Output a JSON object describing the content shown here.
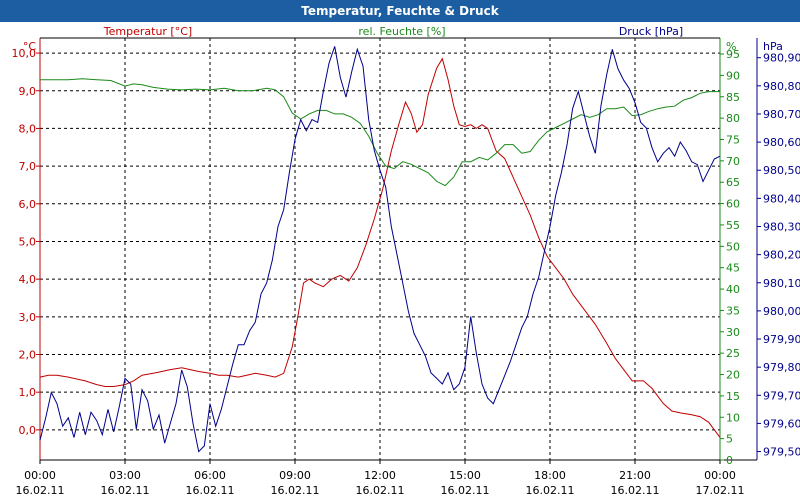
{
  "window": {
    "title": "Temperatur, Feuchte & Druck"
  },
  "colors": {
    "title_bar": "#1c5ea1",
    "temperature": "#c00000",
    "humidity": "#1a8a1a",
    "pressure": "#00008c",
    "grid": "#000000"
  },
  "chart_data": {
    "type": "line",
    "title": "Temperatur, Feuchte & Druck",
    "x_range": [
      0,
      24
    ],
    "x_ticks": [
      {
        "t": 0,
        "time": "00:00",
        "date": "16.02.11"
      },
      {
        "t": 3,
        "time": "03:00",
        "date": "16.02.11"
      },
      {
        "t": 6,
        "time": "06:00",
        "date": "16.02.11"
      },
      {
        "t": 9,
        "time": "09:00",
        "date": "16.02.11"
      },
      {
        "t": 12,
        "time": "12:00",
        "date": "16.02.11"
      },
      {
        "t": 15,
        "time": "15:00",
        "date": "16.02.11"
      },
      {
        "t": 18,
        "time": "18:00",
        "date": "16.02.11"
      },
      {
        "t": 21,
        "time": "21:00",
        "date": "16.02.11"
      },
      {
        "t": 24,
        "time": "00:00",
        "date": "17.02.11"
      }
    ],
    "axes": {
      "temperature": {
        "unit": "°C",
        "label": "Temperatur [°C]",
        "range": [
          -0.8,
          10.4
        ],
        "ticks": [
          0,
          1,
          2,
          3,
          4,
          5,
          6,
          7,
          8,
          9,
          10
        ],
        "tick_labels": [
          "0,0",
          "1,0",
          "2,0",
          "3,0",
          "4,0",
          "5,0",
          "6,0",
          "7,0",
          "8,0",
          "9,0",
          "10,0"
        ]
      },
      "humidity": {
        "unit": "%",
        "label": "rel. Feuchte [%]",
        "range": [
          0,
          98.75
        ],
        "ticks": [
          0,
          5,
          10,
          15,
          20,
          25,
          30,
          35,
          40,
          45,
          50,
          55,
          60,
          65,
          70,
          75,
          80,
          85,
          90,
          95
        ],
        "tick_labels": [
          "0",
          "5",
          "10",
          "15",
          "20",
          "25",
          "30",
          "35",
          "40",
          "45",
          "50",
          "55",
          "60",
          "65",
          "70",
          "75",
          "80",
          "85",
          "90",
          "95"
        ]
      },
      "pressure": {
        "unit": "hPa",
        "label": "Druck [hPa]",
        "range": [
          979.47,
          980.97
        ],
        "ticks": [
          979.5,
          979.6,
          979.7,
          979.8,
          979.9,
          980.0,
          980.1,
          980.2,
          980.3,
          980.4,
          980.5,
          980.6,
          980.7,
          980.8,
          980.9
        ],
        "tick_labels": [
          "979,50",
          "979,60",
          "979,70",
          "979,80",
          "979,90",
          "980,00",
          "980,10",
          "980,20",
          "980,30",
          "980,40",
          "980,50",
          "980,60",
          "980,70",
          "980,80",
          "980,90"
        ]
      }
    },
    "series": [
      {
        "name": "Temperatur [°C]",
        "axis": "temperature",
        "points": [
          [
            0,
            1.4
          ],
          [
            0.3,
            1.45
          ],
          [
            0.6,
            1.45
          ],
          [
            1,
            1.4
          ],
          [
            1.3,
            1.35
          ],
          [
            1.6,
            1.3
          ],
          [
            2,
            1.2
          ],
          [
            2.3,
            1.15
          ],
          [
            2.6,
            1.15
          ],
          [
            3,
            1.2
          ],
          [
            3.3,
            1.3
          ],
          [
            3.6,
            1.45
          ],
          [
            4,
            1.5
          ],
          [
            4.3,
            1.55
          ],
          [
            4.6,
            1.6
          ],
          [
            5,
            1.65
          ],
          [
            5.3,
            1.6
          ],
          [
            5.6,
            1.55
          ],
          [
            6,
            1.5
          ],
          [
            6.3,
            1.45
          ],
          [
            6.6,
            1.45
          ],
          [
            7,
            1.4
          ],
          [
            7.3,
            1.45
          ],
          [
            7.6,
            1.5
          ],
          [
            8,
            1.45
          ],
          [
            8.3,
            1.4
          ],
          [
            8.6,
            1.5
          ],
          [
            8.9,
            2.2
          ],
          [
            9.1,
            3
          ],
          [
            9.3,
            3.9
          ],
          [
            9.5,
            4.0
          ],
          [
            9.7,
            3.9
          ],
          [
            10,
            3.8
          ],
          [
            10.3,
            4.0
          ],
          [
            10.6,
            4.1
          ],
          [
            10.9,
            3.95
          ],
          [
            11.2,
            4.3
          ],
          [
            11.5,
            4.9
          ],
          [
            11.8,
            5.6
          ],
          [
            12.1,
            6.4
          ],
          [
            12.4,
            7.4
          ],
          [
            12.7,
            8.2
          ],
          [
            12.9,
            8.7
          ],
          [
            13.1,
            8.4
          ],
          [
            13.3,
            7.9
          ],
          [
            13.5,
            8.1
          ],
          [
            13.7,
            8.9
          ],
          [
            14,
            9.6
          ],
          [
            14.2,
            9.85
          ],
          [
            14.4,
            9.3
          ],
          [
            14.6,
            8.6
          ],
          [
            14.8,
            8.1
          ],
          [
            15,
            8.05
          ],
          [
            15.2,
            8.1
          ],
          [
            15.4,
            8.0
          ],
          [
            15.6,
            8.1
          ],
          [
            15.8,
            8.0
          ],
          [
            16.1,
            7.4
          ],
          [
            16.4,
            7.2
          ],
          [
            16.7,
            6.7
          ],
          [
            17,
            6.2
          ],
          [
            17.3,
            5.7
          ],
          [
            17.6,
            5.1
          ],
          [
            17.9,
            4.6
          ],
          [
            18.2,
            4.3
          ],
          [
            18.5,
            4.0
          ],
          [
            18.8,
            3.6
          ],
          [
            19.2,
            3.2
          ],
          [
            19.6,
            2.8
          ],
          [
            20,
            2.3
          ],
          [
            20.3,
            1.9
          ],
          [
            20.6,
            1.6
          ],
          [
            20.9,
            1.3
          ],
          [
            21.3,
            1.3
          ],
          [
            21.6,
            1.1
          ],
          [
            22,
            0.7
          ],
          [
            22.3,
            0.5
          ],
          [
            22.6,
            0.45
          ],
          [
            23,
            0.4
          ],
          [
            23.3,
            0.35
          ],
          [
            23.6,
            0.2
          ],
          [
            24,
            -0.2
          ]
        ]
      },
      {
        "name": "rel. Feuchte [%]",
        "axis": "humidity",
        "points": [
          [
            0,
            89
          ],
          [
            0.5,
            89
          ],
          [
            1,
            89
          ],
          [
            1.5,
            89.2
          ],
          [
            2,
            89
          ],
          [
            2.5,
            88.8
          ],
          [
            3,
            87.5
          ],
          [
            3.3,
            88
          ],
          [
            3.6,
            87.8
          ],
          [
            4,
            87.2
          ],
          [
            4.5,
            86.8
          ],
          [
            5,
            86.6
          ],
          [
            5.5,
            86.8
          ],
          [
            6,
            86.6
          ],
          [
            6.5,
            87
          ],
          [
            7,
            86.4
          ],
          [
            7.5,
            86.4
          ],
          [
            8,
            87
          ],
          [
            8.3,
            86.6
          ],
          [
            8.6,
            85
          ],
          [
            8.9,
            81.2
          ],
          [
            9.2,
            79.8
          ],
          [
            9.5,
            81
          ],
          [
            9.8,
            81.8
          ],
          [
            10.1,
            81.8
          ],
          [
            10.4,
            81
          ],
          [
            10.7,
            81
          ],
          [
            11,
            80.2
          ],
          [
            11.3,
            78.8
          ],
          [
            11.6,
            75.8
          ],
          [
            11.9,
            71.8
          ],
          [
            12.2,
            68.8
          ],
          [
            12.5,
            68.2
          ],
          [
            12.8,
            69.8
          ],
          [
            13.1,
            69.2
          ],
          [
            13.4,
            68.2
          ],
          [
            13.7,
            67.2
          ],
          [
            14,
            65.2
          ],
          [
            14.3,
            64.2
          ],
          [
            14.6,
            66.2
          ],
          [
            14.9,
            69.8
          ],
          [
            15.2,
            69.8
          ],
          [
            15.5,
            70.8
          ],
          [
            15.8,
            70.2
          ],
          [
            16.1,
            71.8
          ],
          [
            16.4,
            73.8
          ],
          [
            16.7,
            73.8
          ],
          [
            17,
            71.8
          ],
          [
            17.3,
            72.2
          ],
          [
            17.6,
            74.8
          ],
          [
            17.9,
            76.8
          ],
          [
            18.2,
            77.8
          ],
          [
            18.5,
            78.8
          ],
          [
            18.8,
            79.8
          ],
          [
            19.1,
            80.8
          ],
          [
            19.4,
            80.2
          ],
          [
            19.7,
            80.8
          ],
          [
            20,
            82.2
          ],
          [
            20.3,
            82.2
          ],
          [
            20.6,
            82.6
          ],
          [
            20.9,
            80.6
          ],
          [
            21.2,
            80.8
          ],
          [
            21.5,
            81.6
          ],
          [
            21.8,
            82.2
          ],
          [
            22.1,
            82.6
          ],
          [
            22.4,
            82.8
          ],
          [
            22.7,
            84.2
          ],
          [
            23,
            84.8
          ],
          [
            23.3,
            85.8
          ],
          [
            23.6,
            86.2
          ],
          [
            24,
            86.2
          ]
        ]
      },
      {
        "name": "Druck [hPa]",
        "axis": "pressure",
        "points": [
          [
            0,
            979.54
          ],
          [
            0.2,
            979.62
          ],
          [
            0.4,
            979.71
          ],
          [
            0.6,
            979.67
          ],
          [
            0.8,
            979.59
          ],
          [
            1,
            979.62
          ],
          [
            1.2,
            979.55
          ],
          [
            1.4,
            979.64
          ],
          [
            1.6,
            979.56
          ],
          [
            1.8,
            979.64
          ],
          [
            2,
            979.61
          ],
          [
            2.2,
            979.56
          ],
          [
            2.4,
            979.65
          ],
          [
            2.6,
            979.57
          ],
          [
            2.8,
            979.66
          ],
          [
            3,
            979.76
          ],
          [
            3.2,
            979.74
          ],
          [
            3.4,
            979.58
          ],
          [
            3.6,
            979.72
          ],
          [
            3.8,
            979.68
          ],
          [
            4,
            979.58
          ],
          [
            4.2,
            979.63
          ],
          [
            4.4,
            979.53
          ],
          [
            4.6,
            979.6
          ],
          [
            4.8,
            979.67
          ],
          [
            5,
            979.79
          ],
          [
            5.2,
            979.73
          ],
          [
            5.4,
            979.6
          ],
          [
            5.6,
            979.5
          ],
          [
            5.8,
            979.52
          ],
          [
            6,
            979.67
          ],
          [
            6.2,
            979.59
          ],
          [
            6.4,
            979.65
          ],
          [
            6.6,
            979.73
          ],
          [
            6.8,
            979.81
          ],
          [
            7,
            979.88
          ],
          [
            7.2,
            979.88
          ],
          [
            7.4,
            979.93
          ],
          [
            7.6,
            979.96
          ],
          [
            7.8,
            980.06
          ],
          [
            8,
            980.1
          ],
          [
            8.2,
            980.18
          ],
          [
            8.4,
            980.3
          ],
          [
            8.6,
            980.36
          ],
          [
            8.8,
            980.49
          ],
          [
            9,
            980.61
          ],
          [
            9.2,
            980.68
          ],
          [
            9.4,
            980.64
          ],
          [
            9.6,
            980.68
          ],
          [
            9.8,
            980.67
          ],
          [
            10,
            980.78
          ],
          [
            10.2,
            980.88
          ],
          [
            10.4,
            980.94
          ],
          [
            10.6,
            980.83
          ],
          [
            10.8,
            980.76
          ],
          [
            11,
            980.85
          ],
          [
            11.2,
            980.93
          ],
          [
            11.4,
            980.87
          ],
          [
            11.6,
            980.68
          ],
          [
            11.8,
            980.57
          ],
          [
            12,
            980.5
          ],
          [
            12.2,
            980.44
          ],
          [
            12.4,
            980.3
          ],
          [
            12.6,
            980.2
          ],
          [
            12.8,
            980.1
          ],
          [
            13,
            980.0
          ],
          [
            13.2,
            979.92
          ],
          [
            13.4,
            979.88
          ],
          [
            13.6,
            979.84
          ],
          [
            13.8,
            979.78
          ],
          [
            14,
            979.76
          ],
          [
            14.2,
            979.74
          ],
          [
            14.4,
            979.78
          ],
          [
            14.6,
            979.72
          ],
          [
            14.8,
            979.74
          ],
          [
            15,
            979.8
          ],
          [
            15.2,
            979.98
          ],
          [
            15.4,
            979.85
          ],
          [
            15.6,
            979.74
          ],
          [
            15.8,
            979.69
          ],
          [
            16,
            979.67
          ],
          [
            16.2,
            979.72
          ],
          [
            16.4,
            979.77
          ],
          [
            16.6,
            979.82
          ],
          [
            16.8,
            979.88
          ],
          [
            17,
            979.94
          ],
          [
            17.2,
            979.98
          ],
          [
            17.4,
            980.06
          ],
          [
            17.6,
            980.12
          ],
          [
            17.8,
            980.21
          ],
          [
            18,
            980.3
          ],
          [
            18.2,
            980.41
          ],
          [
            18.4,
            980.49
          ],
          [
            18.6,
            980.59
          ],
          [
            18.8,
            980.72
          ],
          [
            19,
            980.78
          ],
          [
            19.2,
            980.7
          ],
          [
            19.4,
            980.62
          ],
          [
            19.6,
            980.56
          ],
          [
            19.8,
            980.73
          ],
          [
            20,
            980.84
          ],
          [
            20.2,
            980.93
          ],
          [
            20.4,
            980.86
          ],
          [
            20.6,
            980.82
          ],
          [
            20.8,
            980.79
          ],
          [
            21,
            980.74
          ],
          [
            21.2,
            980.67
          ],
          [
            21.4,
            980.65
          ],
          [
            21.6,
            980.58
          ],
          [
            21.8,
            980.53
          ],
          [
            22,
            980.56
          ],
          [
            22.2,
            980.58
          ],
          [
            22.4,
            980.55
          ],
          [
            22.6,
            980.6
          ],
          [
            22.8,
            980.57
          ],
          [
            23,
            980.53
          ],
          [
            23.2,
            980.52
          ],
          [
            23.4,
            980.46
          ],
          [
            23.6,
            980.5
          ],
          [
            23.8,
            980.54
          ],
          [
            24,
            980.55
          ]
        ]
      }
    ]
  }
}
